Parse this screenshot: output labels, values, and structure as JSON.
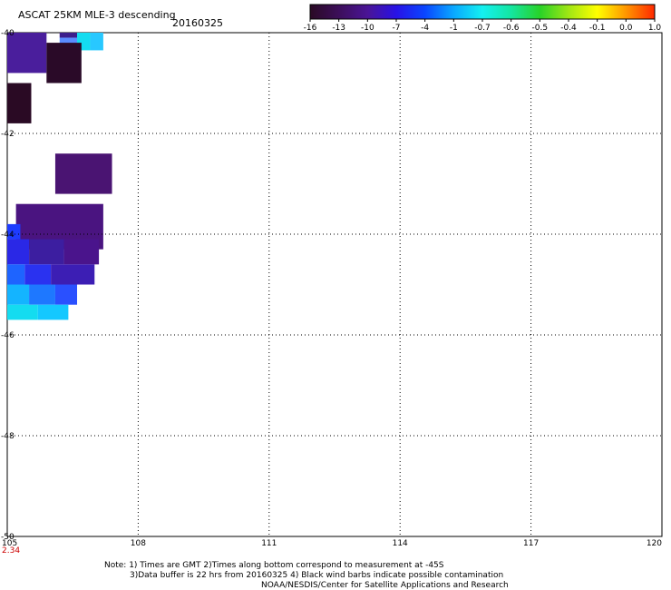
{
  "header": {
    "title": "ASCAT 25KM MLE-3 descending",
    "date": "20160325"
  },
  "colorbar": {
    "labels": [
      "-16",
      "-13",
      "-10",
      "-7",
      "-4",
      "-1",
      "-0.7",
      "-0.6",
      "-0.5",
      "-0.4",
      "-0.1",
      "0.0",
      "1.0"
    ],
    "colors": [
      "#2a0a24",
      "#3c0e5a",
      "#4a1496",
      "#2812e6",
      "#0a46ff",
      "#0aa8ff",
      "#14f0f0",
      "#14e6a0",
      "#28d228",
      "#a0e614",
      "#ffff00",
      "#ff9600",
      "#ff2800"
    ]
  },
  "map": {
    "lon_range": [
      105,
      120
    ],
    "lat_range": [
      -50,
      -40
    ],
    "lon_ticks": [
      "105",
      "108",
      "111",
      "114",
      "117",
      "120"
    ],
    "lat_ticks": [
      "-40",
      "-42",
      "-44",
      "-46",
      "-48",
      "-50"
    ],
    "corner_value": "2.34",
    "swath_cells": [
      {
        "lon": 105.0,
        "lat": -40.0,
        "dlon": 0.9,
        "dlat": 0.8,
        "color": "#4a1e9c"
      },
      {
        "lon": 106.2,
        "lat": -40.0,
        "dlon": 0.4,
        "dlat": 0.1,
        "color": "#3c1e8c"
      },
      {
        "lon": 106.2,
        "lat": -40.1,
        "dlon": 0.4,
        "dlat": 0.15,
        "color": "#5a8cff"
      },
      {
        "lon": 106.6,
        "lat": -40.0,
        "dlon": 0.3,
        "dlat": 0.35,
        "color": "#14dcf0"
      },
      {
        "lon": 106.9,
        "lat": -40.0,
        "dlon": 0.3,
        "dlat": 0.35,
        "color": "#28c8ff"
      },
      {
        "lon": 105.9,
        "lat": -40.2,
        "dlon": 0.8,
        "dlat": 0.8,
        "color": "#2a0a28"
      },
      {
        "lon": 105.0,
        "lat": -41.0,
        "dlon": 0.55,
        "dlat": 0.8,
        "color": "#2a0a24"
      },
      {
        "lon": 106.1,
        "lat": -42.4,
        "dlon": 1.3,
        "dlat": 0.8,
        "color": "#4a1472"
      },
      {
        "lon": 105.2,
        "lat": -43.4,
        "dlon": 2.0,
        "dlat": 0.9,
        "color": "#4a1480"
      },
      {
        "lon": 105.0,
        "lat": -43.8,
        "dlon": 0.3,
        "dlat": 0.3,
        "color": "#1e3cff"
      },
      {
        "lon": 105.0,
        "lat": -44.1,
        "dlon": 0.5,
        "dlat": 0.5,
        "color": "#2a28e6"
      },
      {
        "lon": 105.5,
        "lat": -44.1,
        "dlon": 0.8,
        "dlat": 0.5,
        "color": "#3c1ea0"
      },
      {
        "lon": 106.3,
        "lat": -44.1,
        "dlon": 0.8,
        "dlat": 0.5,
        "color": "#4a148c"
      },
      {
        "lon": 105.0,
        "lat": -44.6,
        "dlon": 0.4,
        "dlat": 0.4,
        "color": "#1e64ff"
      },
      {
        "lon": 105.4,
        "lat": -44.6,
        "dlon": 0.6,
        "dlat": 0.4,
        "color": "#2a32f0"
      },
      {
        "lon": 106.0,
        "lat": -44.6,
        "dlon": 1.0,
        "dlat": 0.4,
        "color": "#3c1eb4"
      },
      {
        "lon": 105.0,
        "lat": -45.0,
        "dlon": 0.5,
        "dlat": 0.4,
        "color": "#14b4ff"
      },
      {
        "lon": 105.5,
        "lat": -45.0,
        "dlon": 0.6,
        "dlat": 0.4,
        "color": "#1e78ff"
      },
      {
        "lon": 106.1,
        "lat": -45.0,
        "dlon": 0.5,
        "dlat": 0.4,
        "color": "#2a50ff"
      },
      {
        "lon": 105.0,
        "lat": -45.4,
        "dlon": 0.7,
        "dlat": 0.3,
        "color": "#14dcf0"
      },
      {
        "lon": 105.7,
        "lat": -45.4,
        "dlon": 0.7,
        "dlat": 0.3,
        "color": "#14c8ff"
      }
    ]
  },
  "notes": [
    "Note: 1) Times are GMT 2)Times along bottom correspond to measurement at -45S",
    "3)Data buffer is 22 hrs from 20160325 4) Black wind barbs indicate possible contamination",
    "NOAA/NESDIS/Center for Satellite Applications and Research"
  ]
}
